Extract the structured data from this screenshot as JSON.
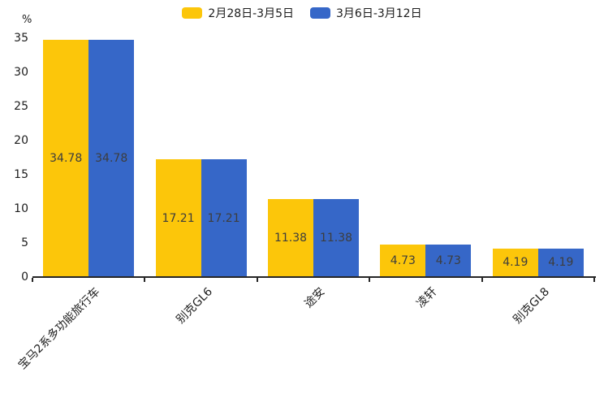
{
  "chart_data": {
    "type": "bar",
    "title": "",
    "xlabel": "",
    "ylabel": "%",
    "categories": [
      "宝马2系多功能旅行车",
      "别克GL6",
      "途安",
      "凌轩",
      "别克GL8"
    ],
    "series": [
      {
        "name": "2月28日-3月5日",
        "color": "#FCC60A",
        "values": [
          34.78,
          17.21,
          11.38,
          4.73,
          4.19
        ]
      },
      {
        "name": "3月6日-3月12日",
        "color": "#3667C8",
        "values": [
          34.78,
          17.21,
          11.38,
          4.73,
          4.19
        ]
      }
    ],
    "ylim": [
      0,
      35
    ],
    "yticks": [
      0,
      5,
      10,
      15,
      20,
      25,
      30,
      35
    ],
    "grid": false,
    "legend_position": "top-center",
    "bar_value_labels_shown": true,
    "x_label_rotation_deg": 45,
    "axis_color": "#262626",
    "tick_label_color": "#1c1c1c",
    "value_label_color": "#3d3d3d"
  }
}
